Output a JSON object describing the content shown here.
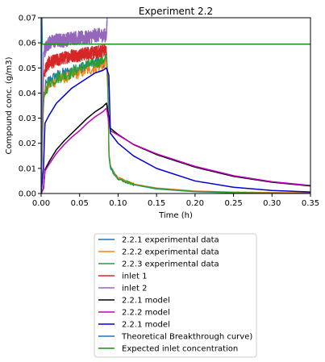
{
  "chart_data": {
    "type": "line",
    "title": "Experiment 2.2",
    "xlabel": "Time (h)",
    "ylabel": "Compound conc. (g/m3)",
    "xlim": [
      0,
      0.35
    ],
    "ylim": [
      0,
      0.07
    ],
    "xticks": [
      "0.00",
      "0.05",
      "0.10",
      "0.15",
      "0.20",
      "0.25",
      "0.30",
      "0.35"
    ],
    "yticks": [
      "0.00",
      "0.01",
      "0.02",
      "0.03",
      "0.04",
      "0.05",
      "0.06",
      "0.07"
    ],
    "grid": false,
    "legend_position": "below plot",
    "series": [
      {
        "name": "2.2.1 experimental data",
        "color": "#1f77b4",
        "noise": 0.0022,
        "x": [
          0.0,
          0.003,
          0.006,
          0.01,
          0.02,
          0.03,
          0.04,
          0.05,
          0.06,
          0.07,
          0.08,
          0.085,
          0.087,
          0.088,
          0.09,
          0.095,
          0.1,
          0.12,
          0.15,
          0.2,
          0.25,
          0.3,
          0.35
        ],
        "y": [
          0.0,
          0.038,
          0.043,
          0.045,
          0.047,
          0.048,
          0.049,
          0.05,
          0.051,
          0.052,
          0.052,
          0.053,
          0.04,
          0.015,
          0.01,
          0.0075,
          0.0058,
          0.0035,
          0.0018,
          0.0007,
          0.0003,
          0.0001,
          0.0
        ]
      },
      {
        "name": "2.2.2 experimental data",
        "color": "#ff7f0e",
        "noise": 0.0022,
        "x": [
          0.0,
          0.003,
          0.006,
          0.01,
          0.02,
          0.03,
          0.04,
          0.05,
          0.06,
          0.07,
          0.08,
          0.085,
          0.087,
          0.088,
          0.09,
          0.095,
          0.1,
          0.12,
          0.15,
          0.2,
          0.25,
          0.3,
          0.35
        ],
        "y": [
          0.0,
          0.037,
          0.041,
          0.043,
          0.045,
          0.046,
          0.047,
          0.048,
          0.049,
          0.05,
          0.051,
          0.052,
          0.04,
          0.016,
          0.011,
          0.008,
          0.0062,
          0.0038,
          0.0022,
          0.001,
          0.0006,
          0.0004,
          0.0003
        ]
      },
      {
        "name": "2.2.3 experimental data",
        "color": "#2ca02c",
        "noise": 0.0024,
        "x": [
          0.0,
          0.003,
          0.006,
          0.01,
          0.02,
          0.03,
          0.04,
          0.05,
          0.06,
          0.07,
          0.08,
          0.085,
          0.087,
          0.088,
          0.09,
          0.095,
          0.1,
          0.12,
          0.15,
          0.2,
          0.25,
          0.3,
          0.35
        ],
        "y": [
          0.0,
          0.036,
          0.041,
          0.044,
          0.046,
          0.047,
          0.048,
          0.05,
          0.051,
          0.052,
          0.053,
          0.055,
          0.042,
          0.016,
          0.011,
          0.008,
          0.006,
          0.0036,
          0.002,
          0.0008,
          0.0004,
          0.0002,
          0.0001
        ]
      },
      {
        "name": "inlet 1",
        "color": "#d62728",
        "noise": 0.0026,
        "x": [
          0.0,
          0.003,
          0.006,
          0.01,
          0.02,
          0.03,
          0.04,
          0.05,
          0.06,
          0.07,
          0.08,
          0.085
        ],
        "y": [
          0.0,
          0.047,
          0.05,
          0.052,
          0.053,
          0.054,
          0.055,
          0.055,
          0.056,
          0.056,
          0.057,
          0.057
        ]
      },
      {
        "name": "inlet 2",
        "color": "#9467bd",
        "noise": 0.0028,
        "x": [
          0.0,
          0.003,
          0.006,
          0.01,
          0.02,
          0.03,
          0.04,
          0.05,
          0.06,
          0.07,
          0.08,
          0.085,
          0.086
        ],
        "y": [
          0.0,
          0.056,
          0.058,
          0.06,
          0.061,
          0.061,
          0.062,
          0.062,
          0.062,
          0.063,
          0.063,
          0.063,
          0.072
        ]
      },
      {
        "name": "2.2.1 model",
        "color": "#000000",
        "noise": 0,
        "x": [
          0.0,
          0.003,
          0.005,
          0.01,
          0.02,
          0.03,
          0.04,
          0.05,
          0.06,
          0.07,
          0.08,
          0.085,
          0.09,
          0.1,
          0.12,
          0.15,
          0.2,
          0.25,
          0.3,
          0.35
        ],
        "y": [
          0.0,
          0.002,
          0.0095,
          0.0125,
          0.0175,
          0.021,
          0.024,
          0.027,
          0.03,
          0.0325,
          0.0345,
          0.036,
          0.026,
          0.0235,
          0.0195,
          0.0155,
          0.0105,
          0.0068,
          0.0045,
          0.003
        ]
      },
      {
        "name": "2.2.2 model",
        "color": "#bf00bf",
        "noise": 0,
        "x": [
          0.0,
          0.003,
          0.005,
          0.01,
          0.02,
          0.03,
          0.04,
          0.05,
          0.06,
          0.07,
          0.08,
          0.085,
          0.09,
          0.1,
          0.12,
          0.15,
          0.2,
          0.25,
          0.3,
          0.35
        ],
        "y": [
          0.0,
          0.002,
          0.009,
          0.0115,
          0.016,
          0.0195,
          0.0225,
          0.025,
          0.028,
          0.0305,
          0.0325,
          0.034,
          0.025,
          0.0233,
          0.0196,
          0.0158,
          0.0108,
          0.0071,
          0.0047,
          0.0032
        ]
      },
      {
        "name": "2.2.1 model",
        "color": "#0000cd",
        "noise": 0,
        "x": [
          0.0,
          0.003,
          0.005,
          0.01,
          0.02,
          0.03,
          0.04,
          0.05,
          0.06,
          0.07,
          0.08,
          0.085,
          0.088,
          0.09,
          0.1,
          0.12,
          0.15,
          0.2,
          0.25,
          0.3,
          0.35
        ],
        "y": [
          0.0,
          0.01,
          0.028,
          0.031,
          0.036,
          0.039,
          0.042,
          0.044,
          0.046,
          0.048,
          0.049,
          0.05,
          0.047,
          0.024,
          0.02,
          0.015,
          0.01,
          0.005,
          0.0025,
          0.0012,
          0.0006
        ]
      },
      {
        "name": "Theoretical Breakthrough curve)",
        "color": "#1f77b4",
        "noise": 0,
        "x": [
          0.0,
          0.001,
          0.0015,
          0.35
        ],
        "y": [
          0.0,
          0.07,
          0.0595,
          0.0595
        ]
      },
      {
        "name": "Expected inlet concentration",
        "color": "#228b22",
        "noise": 0,
        "x": [
          0.0,
          0.35
        ],
        "y": [
          0.0595,
          0.0595
        ]
      }
    ]
  }
}
